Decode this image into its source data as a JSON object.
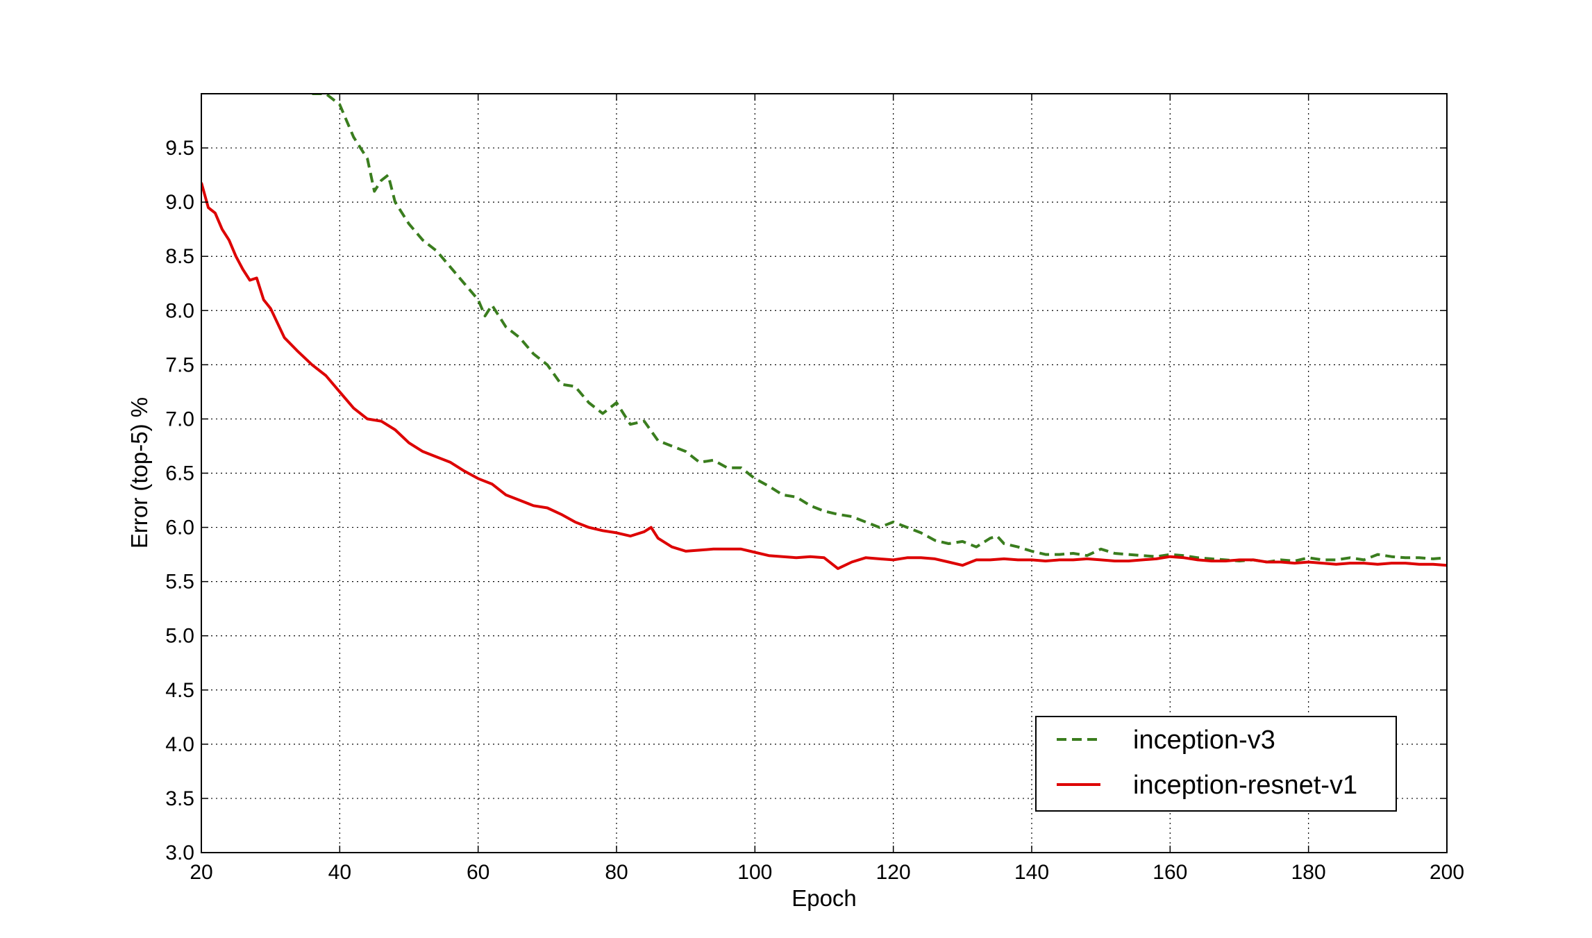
{
  "chart_data": {
    "type": "line",
    "title": "",
    "xlabel": "Epoch",
    "ylabel": "Error (top-5) %",
    "xlim": [
      20,
      200
    ],
    "ylim": [
      3.0,
      10.0
    ],
    "xticks": [
      20,
      40,
      60,
      80,
      100,
      120,
      140,
      160,
      180,
      200
    ],
    "yticks": [
      "3.0",
      "3.5",
      "4.0",
      "4.5",
      "5.0",
      "5.5",
      "6.0",
      "6.5",
      "7.0",
      "7.5",
      "8.0",
      "8.5",
      "9.0",
      "9.5"
    ],
    "grid": true,
    "legend_position": "lower-right",
    "series": [
      {
        "name": "inception-v3",
        "color": "#3a7d1e",
        "style": "dashed",
        "x": [
          36,
          38,
          40,
          42,
          44,
          45,
          46,
          47,
          48,
          50,
          52,
          54,
          56,
          58,
          60,
          61,
          62,
          64,
          66,
          68,
          70,
          72,
          74,
          76,
          78,
          80,
          82,
          84,
          86,
          88,
          90,
          92,
          94,
          96,
          98,
          100,
          102,
          104,
          106,
          108,
          110,
          112,
          114,
          116,
          118,
          120,
          122,
          124,
          126,
          128,
          130,
          132,
          134,
          135,
          136,
          138,
          140,
          142,
          144,
          146,
          148,
          150,
          152,
          154,
          156,
          158,
          160,
          162,
          164,
          166,
          168,
          170,
          172,
          174,
          176,
          178,
          180,
          182,
          184,
          186,
          188,
          190,
          192,
          194,
          196,
          198,
          200
        ],
        "y": [
          10.0,
          10.0,
          9.9,
          9.6,
          9.4,
          9.1,
          9.2,
          9.25,
          9.0,
          8.8,
          8.65,
          8.55,
          8.4,
          8.25,
          8.1,
          7.95,
          8.05,
          7.85,
          7.75,
          7.6,
          7.5,
          7.32,
          7.3,
          7.15,
          7.05,
          7.15,
          6.95,
          6.98,
          6.8,
          6.75,
          6.7,
          6.6,
          6.62,
          6.55,
          6.55,
          6.45,
          6.38,
          6.3,
          6.28,
          6.2,
          6.15,
          6.12,
          6.1,
          6.05,
          6.0,
          6.05,
          6.0,
          5.95,
          5.88,
          5.85,
          5.87,
          5.82,
          5.9,
          5.92,
          5.85,
          5.82,
          5.78,
          5.75,
          5.75,
          5.76,
          5.74,
          5.8,
          5.76,
          5.75,
          5.74,
          5.73,
          5.75,
          5.74,
          5.72,
          5.71,
          5.7,
          5.69,
          5.7,
          5.68,
          5.7,
          5.69,
          5.72,
          5.7,
          5.7,
          5.72,
          5.7,
          5.75,
          5.73,
          5.72,
          5.72,
          5.71,
          5.72
        ]
      },
      {
        "name": "inception-resnet-v1",
        "color": "#dd0000",
        "style": "solid",
        "x": [
          20,
          21,
          22,
          23,
          24,
          25,
          26,
          27,
          28,
          29,
          30,
          32,
          34,
          36,
          38,
          40,
          42,
          44,
          46,
          48,
          50,
          52,
          54,
          56,
          58,
          60,
          62,
          64,
          66,
          68,
          70,
          72,
          74,
          76,
          78,
          80,
          82,
          84,
          85,
          86,
          88,
          90,
          92,
          94,
          96,
          98,
          100,
          102,
          104,
          106,
          108,
          110,
          112,
          114,
          116,
          118,
          120,
          122,
          124,
          126,
          128,
          130,
          132,
          134,
          136,
          138,
          140,
          142,
          144,
          146,
          148,
          150,
          152,
          154,
          156,
          158,
          160,
          162,
          164,
          166,
          168,
          170,
          172,
          174,
          176,
          178,
          180,
          182,
          184,
          186,
          188,
          190,
          192,
          194,
          196,
          198,
          200
        ],
        "y": [
          9.18,
          8.95,
          8.9,
          8.75,
          8.65,
          8.5,
          8.38,
          8.28,
          8.3,
          8.1,
          8.02,
          7.75,
          7.62,
          7.5,
          7.4,
          7.25,
          7.1,
          7.0,
          6.98,
          6.9,
          6.78,
          6.7,
          6.65,
          6.6,
          6.52,
          6.45,
          6.4,
          6.3,
          6.25,
          6.2,
          6.18,
          6.12,
          6.05,
          6.0,
          5.97,
          5.95,
          5.92,
          5.96,
          6.0,
          5.9,
          5.82,
          5.78,
          5.79,
          5.8,
          5.8,
          5.8,
          5.77,
          5.74,
          5.73,
          5.72,
          5.73,
          5.72,
          5.62,
          5.68,
          5.72,
          5.71,
          5.7,
          5.72,
          5.72,
          5.71,
          5.68,
          5.65,
          5.7,
          5.7,
          5.71,
          5.7,
          5.7,
          5.69,
          5.7,
          5.7,
          5.71,
          5.7,
          5.69,
          5.69,
          5.7,
          5.71,
          5.73,
          5.72,
          5.7,
          5.69,
          5.69,
          5.7,
          5.7,
          5.68,
          5.68,
          5.67,
          5.68,
          5.67,
          5.66,
          5.67,
          5.67,
          5.66,
          5.67,
          5.67,
          5.66,
          5.66,
          5.65
        ]
      }
    ]
  }
}
